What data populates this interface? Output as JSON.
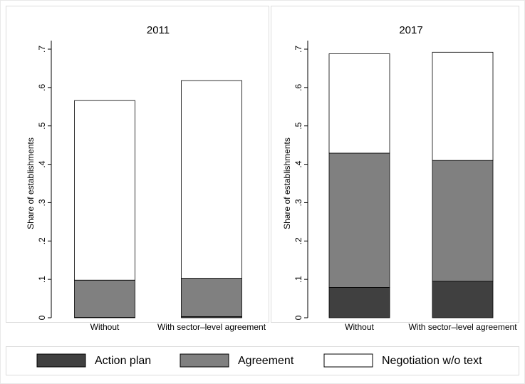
{
  "chart_data": [
    {
      "type": "bar",
      "stacked": true,
      "title": "2011",
      "ylabel": "Share of establishments",
      "categories": [
        "Without",
        "With sector–level agreement"
      ],
      "series": [
        {
          "color": "#404040",
          "values": [
            0.001,
            0.003
          ]
        },
        {
          "color": "#808080",
          "values": [
            0.097,
            0.1
          ]
        },
        {
          "color": "#ffffff",
          "values": [
            0.468,
            0.515
          ]
        }
      ],
      "ylim": [
        0,
        0.7
      ],
      "yticks": [
        0,
        {
          "value": 0.1,
          "label": ".1"
        },
        {
          "value": 0.2,
          "label": ".2"
        },
        {
          "value": 0.3,
          "label": ".3"
        },
        {
          "value": 0.4,
          "label": ".4"
        },
        {
          "value": 0.5,
          "label": ".5"
        },
        {
          "value": 0.6,
          "label": ".6"
        },
        {
          "value": 0.7,
          "label": ".7"
        }
      ]
    },
    {
      "type": "bar",
      "stacked": true,
      "title": "2017",
      "ylabel": "Share of establishments",
      "categories": [
        "Without",
        "With sector–level agreement"
      ],
      "series": [
        {
          "color": "#404040",
          "values": [
            0.079,
            0.095
          ]
        },
        {
          "color": "#808080",
          "values": [
            0.35,
            0.315
          ]
        },
        {
          "color": "#ffffff",
          "values": [
            0.259,
            0.282
          ]
        }
      ],
      "ylim": [
        0,
        0.7
      ],
      "yticks": [
        0,
        {
          "value": 0.1,
          "label": ".1"
        },
        {
          "value": 0.2,
          "label": ".2"
        },
        {
          "value": 0.3,
          "label": ".3"
        },
        {
          "value": 0.4,
          "label": ".4"
        },
        {
          "value": 0.5,
          "label": ".5"
        },
        {
          "value": 0.6,
          "label": ".6"
        },
        {
          "value": 0.7,
          "label": ".7"
        }
      ]
    }
  ],
  "legend": {
    "labels": [
      "Action plan",
      "Agreement",
      "Negotiation w/o text"
    ]
  }
}
